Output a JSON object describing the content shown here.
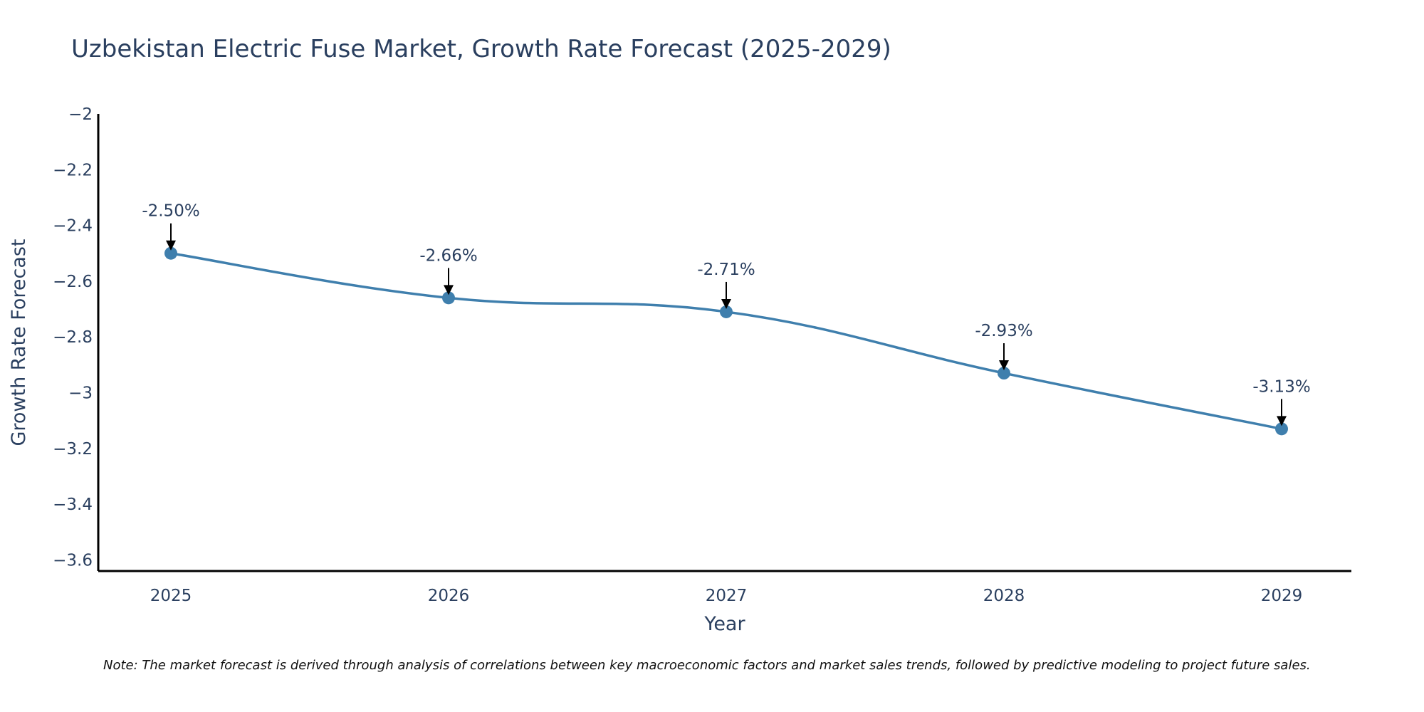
{
  "chart_data": {
    "type": "line",
    "title": "Uzbekistan Electric Fuse Market, Growth Rate Forecast (2025-2029)",
    "xlabel": "Year",
    "ylabel": "Growth Rate Forecast",
    "categories": [
      "2025",
      "2026",
      "2027",
      "2028",
      "2029"
    ],
    "values": [
      -2.5,
      -2.66,
      -2.71,
      -2.93,
      -3.13
    ],
    "data_labels": [
      "-2.50%",
      "-2.66%",
      "-2.71%",
      "-2.93%",
      "-3.13%"
    ],
    "ylim": [
      -3.64,
      -2.0
    ],
    "yticks": [
      -2,
      -2.2,
      -2.4,
      -2.6,
      -2.8,
      -3,
      -3.2,
      -3.4,
      -3.6
    ],
    "ytick_labels": [
      "−2",
      "−2.2",
      "−2.4",
      "−2.6",
      "−2.8",
      "−3",
      "−3.2",
      "−3.4",
      "−3.6"
    ],
    "line_color": "#3f7fad",
    "grid": false,
    "note": "Note: The market forecast is derived through analysis of correlations between key macroeconomic factors and market sales trends, followed by predictive modeling to project future sales."
  }
}
